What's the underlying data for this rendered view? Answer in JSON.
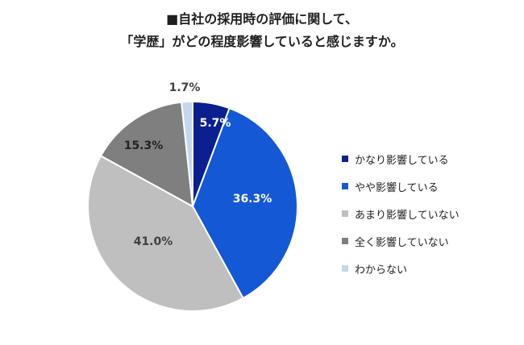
{
  "chart_data": {
    "type": "pie",
    "title": "■自社の採用時の評価に関して、",
    "subtitle": "「学歴」がどの程度影響していると感じますか。",
    "categories": [
      "かなり影響している",
      "やや影響している",
      "あまり影響していない",
      "全く影響していない",
      "わからない"
    ],
    "values": [
      5.7,
      36.3,
      41.0,
      15.3,
      1.7
    ],
    "labels": [
      "5.7%",
      "36.3%",
      "41.0%",
      "15.3%",
      "1.7%"
    ],
    "colors": [
      "#0b1f8f",
      "#1458d6",
      "#bfbfbf",
      "#7f7f7f",
      "#c5d7ec"
    ],
    "label_colors": [
      "#ffffff",
      "#ffffff",
      "#404040",
      "#222222",
      "#404040"
    ],
    "start": "12 o'clock",
    "direction": "clockwise",
    "legend": "right"
  }
}
